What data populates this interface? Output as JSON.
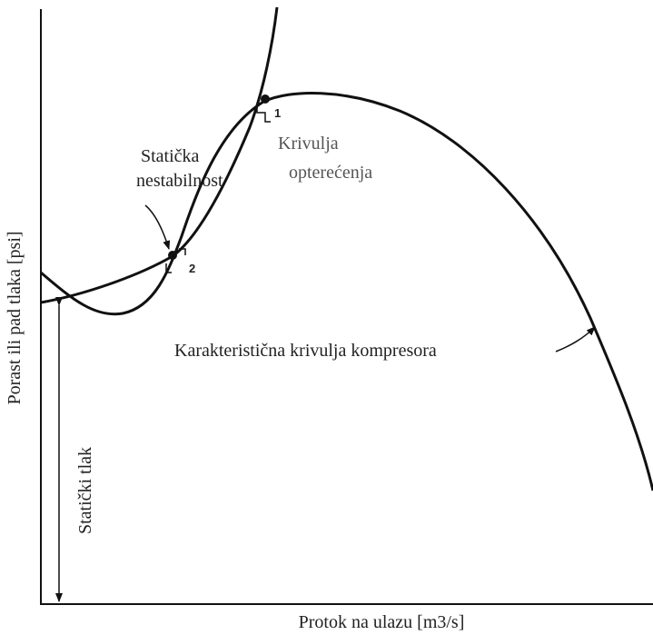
{
  "axes": {
    "y_label": "Porast ili pad tlaka [psi]",
    "x_label": "Protok na ulazu [m3/s]"
  },
  "annotations": {
    "instability": [
      "Statička",
      "nestabilnost"
    ],
    "load_curve": [
      "Krivulja",
      "opterećenja"
    ],
    "compressor_curve": "Karakteristična krivulja kompresora",
    "static_pressure": "Statički tlak",
    "point_1": "1",
    "point_2": "2"
  }
}
